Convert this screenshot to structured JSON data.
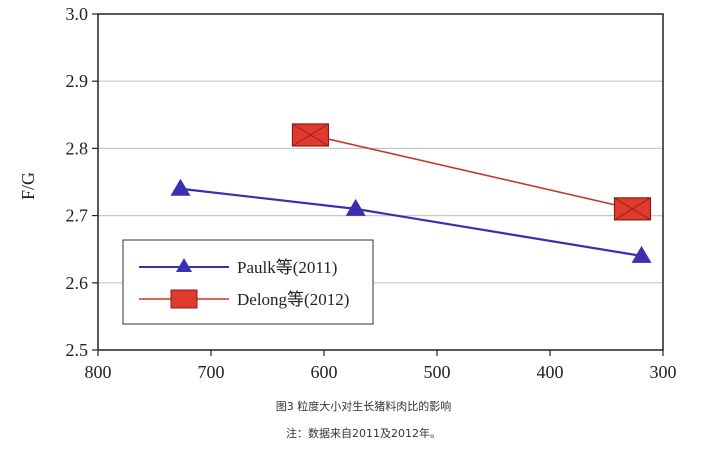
{
  "chart_data": {
    "type": "line",
    "ylabel": "F/G",
    "xlabel": "",
    "xlim": [
      800,
      300
    ],
    "ylim": [
      2.5,
      3.0
    ],
    "x_ticks": [
      "800",
      "700",
      "600",
      "500",
      "400",
      "300"
    ],
    "y_ticks": [
      "2.5",
      "2.6",
      "2.7",
      "2.8",
      "2.9",
      "3.0"
    ],
    "grid": "horizontal",
    "legend_position": "bottom-left",
    "series": [
      {
        "name": "Paulk等(2011)",
        "marker": "triangle",
        "color": "#3a2fb0",
        "points": [
          {
            "x": 727,
            "y": 2.74
          },
          {
            "x": 572,
            "y": 2.71
          },
          {
            "x": 319,
            "y": 2.64
          }
        ]
      },
      {
        "name": "Delong等(2012)",
        "marker": "square",
        "color": "#c0392b",
        "marker_fill": "#e03a2e",
        "points": [
          {
            "x": 612,
            "y": 2.82
          },
          {
            "x": 327,
            "y": 2.71
          }
        ]
      }
    ]
  },
  "caption": {
    "figure_title": "图3 粒度大小对生长猪料肉比的影响",
    "note": "注：数据来自2011及2012年。"
  }
}
